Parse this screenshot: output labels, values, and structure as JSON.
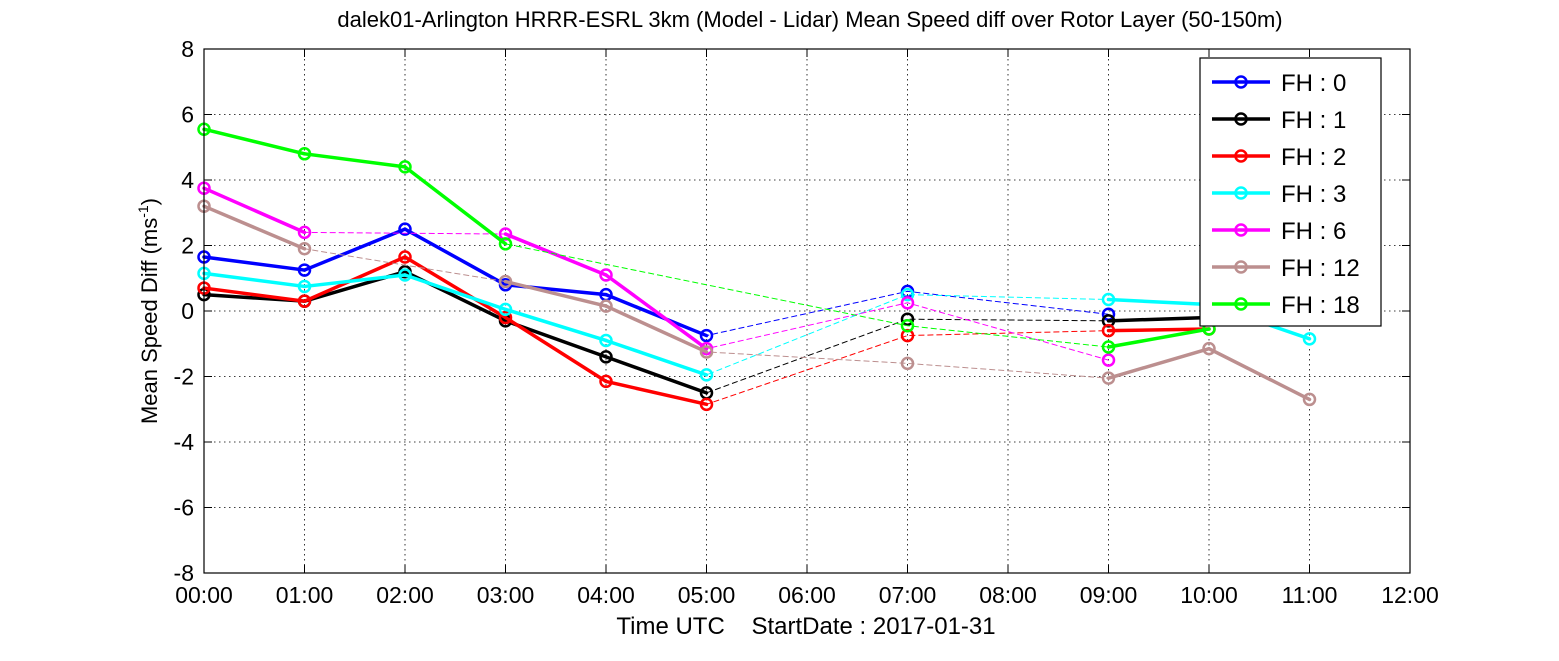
{
  "chart_data": {
    "type": "line",
    "title": "dalek01-Arlington HRRR-ESRL 3km (Model - Lidar) Mean Speed diff over Rotor Layer (50-150m)",
    "ylabel_main": "Mean Speed Diff (ms",
    "ylabel_sup": "-1",
    "ylabel_close": ")",
    "xlabel": "Time UTC    StartDate : 2017-01-31",
    "xlim": [
      0,
      12
    ],
    "ylim": [
      -8,
      8
    ],
    "x_ticks": [
      0,
      1,
      2,
      3,
      4,
      5,
      6,
      7,
      8,
      9,
      10,
      11,
      12
    ],
    "x_tick_labels": [
      "00:00",
      "01:00",
      "02:00",
      "03:00",
      "04:00",
      "05:00",
      "06:00",
      "07:00",
      "08:00",
      "09:00",
      "10:00",
      "11:00",
      "12:00"
    ],
    "y_ticks": [
      -8,
      -6,
      -4,
      -2,
      0,
      2,
      4,
      6,
      8
    ],
    "y_tick_labels": [
      "-8",
      "-6",
      "-4",
      "-2",
      "0",
      "2",
      "4",
      "6",
      "8"
    ],
    "grid": true,
    "legend_position": "top-right",
    "series": [
      {
        "name": "FH : 0",
        "color": "#0000ff",
        "x": [
          0,
          1,
          2,
          3,
          4,
          5,
          7,
          9,
          10,
          11
        ],
        "y": [
          1.65,
          1.25,
          2.5,
          0.8,
          0.5,
          -0.75,
          0.6,
          -0.1,
          null,
          null
        ]
      },
      {
        "name": "FH : 1",
        "color": "#000000",
        "x": [
          0,
          1,
          2,
          3,
          4,
          5,
          7,
          9,
          10,
          11
        ],
        "y": [
          0.5,
          0.3,
          1.2,
          -0.3,
          -1.4,
          -2.5,
          -0.25,
          -0.3,
          -0.2,
          null
        ]
      },
      {
        "name": "FH : 2",
        "color": "#ff0000",
        "x": [
          0,
          1,
          2,
          3,
          4,
          5,
          7,
          9,
          10,
          11
        ],
        "y": [
          0.7,
          0.3,
          1.65,
          -0.2,
          -2.15,
          -2.85,
          -0.75,
          -0.6,
          -0.55,
          null
        ]
      },
      {
        "name": "FH : 3",
        "color": "#00ffff",
        "x": [
          0,
          1,
          2,
          3,
          4,
          5,
          7,
          9,
          10,
          11
        ],
        "y": [
          1.15,
          0.75,
          1.1,
          0.05,
          -0.9,
          -1.95,
          0.5,
          0.35,
          0.2,
          -0.85
        ]
      },
      {
        "name": "FH : 6",
        "color": "#ff00ff",
        "x": [
          0,
          1,
          2,
          3,
          4,
          5,
          7,
          9,
          10,
          11
        ],
        "y": [
          3.75,
          2.4,
          null,
          2.35,
          1.1,
          -1.15,
          0.25,
          -1.5,
          null,
          null
        ]
      },
      {
        "name": "FH : 12",
        "color": "#bc8f8f",
        "x": [
          0,
          1,
          2,
          3,
          4,
          5,
          7,
          9,
          10,
          11
        ],
        "y": [
          3.2,
          1.9,
          null,
          0.9,
          0.15,
          -1.25,
          -1.6,
          -2.05,
          -1.15,
          -2.7
        ]
      },
      {
        "name": "FH : 18",
        "color": "#00ff00",
        "x": [
          0,
          1,
          2,
          3,
          4,
          5,
          7,
          9,
          10,
          11
        ],
        "y": [
          5.55,
          4.8,
          4.4,
          2.05,
          null,
          null,
          -0.45,
          -1.1,
          -0.55,
          null
        ]
      }
    ]
  }
}
